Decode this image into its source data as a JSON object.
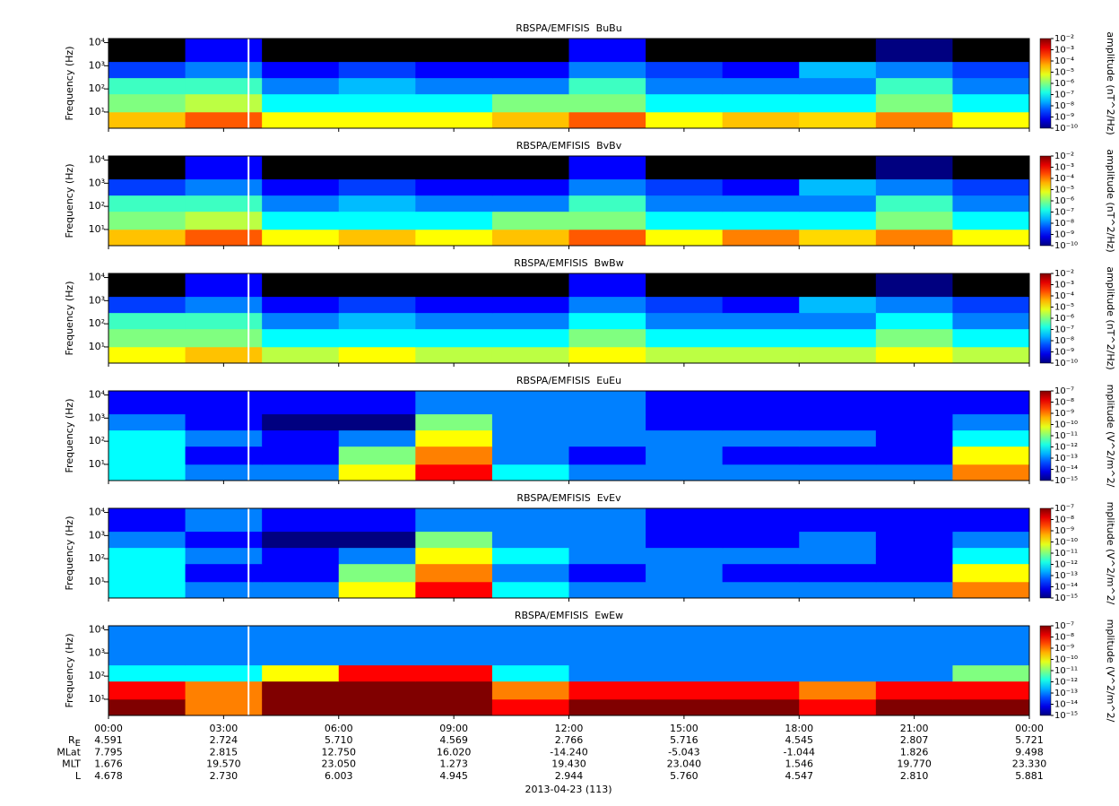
{
  "chart_data": [
    {
      "type": "spectrogram",
      "title": "RBSPA/EMFISIS  BuBu",
      "ylabel": "Frequency (Hz)",
      "log_y": true,
      "ylim": [
        2,
        15000
      ],
      "yticks": [
        {
          "value": 10,
          "label": "10¹"
        },
        {
          "value": 100,
          "label": "10²"
        },
        {
          "value": 1000,
          "label": "10³"
        },
        {
          "value": 10000,
          "label": "10⁴"
        }
      ],
      "xlim": [
        0,
        24
      ],
      "xbins": [
        0,
        2,
        4,
        6,
        8,
        10,
        12,
        14,
        16,
        18,
        20,
        22,
        24
      ],
      "ybins": [
        2,
        10,
        60,
        300,
        1500,
        15000
      ],
      "gap_x": 3.65,
      "z": [
        [
          3e-05,
          0.0002,
          1e-05,
          1e-05,
          1e-05,
          3e-05,
          0.0002,
          1e-05,
          3e-05,
          2e-05,
          0.0001,
          1e-05
        ],
        [
          1e-06,
          3e-06,
          1e-07,
          1e-07,
          1e-07,
          1e-06,
          1e-06,
          1e-07,
          1e-07,
          1e-07,
          1e-06,
          1e-07
        ],
        [
          3e-07,
          3e-07,
          1e-08,
          3e-08,
          1e-08,
          1e-08,
          3e-07,
          1e-08,
          1e-08,
          1e-08,
          3e-07,
          1e-08
        ],
        [
          3e-09,
          1e-08,
          1e-09,
          3e-09,
          1e-09,
          1e-09,
          1e-08,
          3e-09,
          1e-09,
          3e-08,
          1e-08,
          3e-09
        ],
        [
          1e-11,
          1e-09,
          1e-11,
          1e-11,
          1e-11,
          1e-11,
          1e-09,
          1e-11,
          1e-11,
          1e-11,
          1e-10,
          1e-11
        ]
      ],
      "colorbar": {
        "label": "amplitude (nT^2/Hz)",
        "log": true,
        "lim": [
          1e-10,
          0.01
        ],
        "ticks": [
          {
            "value": 0.01,
            "label": "10⁻²"
          },
          {
            "value": 0.001,
            "label": "10⁻³"
          },
          {
            "value": 0.0001,
            "label": "10⁻⁴"
          },
          {
            "value": 1e-05,
            "label": "10⁻⁵"
          },
          {
            "value": 1e-06,
            "label": "10⁻⁶"
          },
          {
            "value": 1e-07,
            "label": "10⁻⁷"
          },
          {
            "value": 1e-08,
            "label": "10⁻⁸"
          },
          {
            "value": 1e-09,
            "label": "10⁻⁹"
          },
          {
            "value": 1e-10,
            "label": "10⁻¹⁰"
          }
        ]
      }
    },
    {
      "type": "spectrogram",
      "title": "RBSPA/EMFISIS  BvBv",
      "ylabel": "Frequency (Hz)",
      "log_y": true,
      "ylim": [
        2,
        15000
      ],
      "yticks": [
        {
          "value": 10,
          "label": "10¹"
        },
        {
          "value": 100,
          "label": "10²"
        },
        {
          "value": 1000,
          "label": "10³"
        },
        {
          "value": 10000,
          "label": "10⁴"
        }
      ],
      "xlim": [
        0,
        24
      ],
      "xbins": [
        0,
        2,
        4,
        6,
        8,
        10,
        12,
        14,
        16,
        18,
        20,
        22,
        24
      ],
      "ybins": [
        2,
        10,
        60,
        300,
        1500,
        15000
      ],
      "gap_x": 3.65,
      "z": [
        [
          3e-05,
          0.0002,
          1e-05,
          3e-05,
          1e-05,
          3e-05,
          0.0002,
          1e-05,
          0.0001,
          2e-05,
          0.0001,
          1e-05
        ],
        [
          1e-06,
          3e-06,
          1e-07,
          1e-07,
          1e-07,
          1e-06,
          1e-06,
          1e-07,
          1e-07,
          1e-07,
          1e-06,
          1e-07
        ],
        [
          3e-07,
          3e-07,
          1e-08,
          3e-08,
          1e-08,
          1e-08,
          3e-07,
          1e-08,
          1e-08,
          1e-08,
          3e-07,
          1e-08
        ],
        [
          3e-09,
          1e-08,
          1e-09,
          3e-09,
          1e-09,
          1e-09,
          1e-08,
          3e-09,
          1e-09,
          3e-08,
          1e-08,
          3e-09
        ],
        [
          1e-11,
          1e-09,
          1e-11,
          1e-11,
          1e-11,
          1e-11,
          1e-09,
          1e-11,
          1e-11,
          1e-11,
          1e-10,
          1e-11
        ]
      ],
      "colorbar": {
        "label": "amplitude (nT^2/Hz)",
        "log": true,
        "lim": [
          1e-10,
          0.01
        ],
        "ticks": [
          {
            "value": 0.01,
            "label": "10⁻²"
          },
          {
            "value": 0.001,
            "label": "10⁻³"
          },
          {
            "value": 0.0001,
            "label": "10⁻⁴"
          },
          {
            "value": 1e-05,
            "label": "10⁻⁵"
          },
          {
            "value": 1e-06,
            "label": "10⁻⁶"
          },
          {
            "value": 1e-07,
            "label": "10⁻⁷"
          },
          {
            "value": 1e-08,
            "label": "10⁻⁸"
          },
          {
            "value": 1e-09,
            "label": "10⁻⁹"
          },
          {
            "value": 1e-10,
            "label": "10⁻¹⁰"
          }
        ]
      }
    },
    {
      "type": "spectrogram",
      "title": "RBSPA/EMFISIS  BwBw",
      "ylabel": "Frequency (Hz)",
      "log_y": true,
      "ylim": [
        2,
        15000
      ],
      "yticks": [
        {
          "value": 10,
          "label": "10¹"
        },
        {
          "value": 100,
          "label": "10²"
        },
        {
          "value": 1000,
          "label": "10³"
        },
        {
          "value": 10000,
          "label": "10⁴"
        }
      ],
      "xlim": [
        0,
        24
      ],
      "xbins": [
        0,
        2,
        4,
        6,
        8,
        10,
        12,
        14,
        16,
        18,
        20,
        22,
        24
      ],
      "ybins": [
        2,
        10,
        60,
        300,
        1500,
        15000
      ],
      "gap_x": 3.65,
      "z": [
        [
          1e-05,
          3e-05,
          3e-06,
          1e-05,
          3e-06,
          3e-06,
          1e-05,
          3e-06,
          3e-06,
          3e-06,
          1e-05,
          3e-06
        ],
        [
          1e-06,
          1e-06,
          1e-07,
          1e-07,
          1e-07,
          1e-07,
          1e-06,
          1e-07,
          1e-07,
          1e-07,
          1e-06,
          1e-07
        ],
        [
          3e-07,
          3e-07,
          1e-08,
          3e-08,
          1e-08,
          1e-08,
          1e-07,
          1e-08,
          1e-08,
          1e-08,
          1e-07,
          1e-08
        ],
        [
          3e-09,
          1e-08,
          1e-09,
          3e-09,
          1e-09,
          1e-09,
          1e-08,
          3e-09,
          1e-09,
          3e-08,
          1e-08,
          3e-09
        ],
        [
          1e-11,
          1e-09,
          1e-11,
          1e-11,
          1e-11,
          1e-11,
          1e-09,
          1e-11,
          1e-11,
          1e-11,
          1e-10,
          1e-11
        ]
      ],
      "colorbar": {
        "label": "amplitude (nT^2/Hz)",
        "log": true,
        "lim": [
          1e-10,
          0.01
        ],
        "ticks": [
          {
            "value": 0.01,
            "label": "10⁻²"
          },
          {
            "value": 0.001,
            "label": "10⁻³"
          },
          {
            "value": 0.0001,
            "label": "10⁻⁴"
          },
          {
            "value": 1e-05,
            "label": "10⁻⁵"
          },
          {
            "value": 1e-06,
            "label": "10⁻⁶"
          },
          {
            "value": 1e-07,
            "label": "10⁻⁷"
          },
          {
            "value": 1e-08,
            "label": "10⁻⁸"
          },
          {
            "value": 1e-09,
            "label": "10⁻⁹"
          },
          {
            "value": 1e-10,
            "label": "10⁻¹⁰"
          }
        ]
      }
    },
    {
      "type": "spectrogram",
      "title": "RBSPA/EMFISIS  EuEu",
      "ylabel": "Frequency (Hz)",
      "log_y": true,
      "ylim": [
        2,
        15000
      ],
      "yticks": [
        {
          "value": 10,
          "label": "10¹"
        },
        {
          "value": 100,
          "label": "10²"
        },
        {
          "value": 1000,
          "label": "10³"
        },
        {
          "value": 10000,
          "label": "10⁴"
        }
      ],
      "xlim": [
        0,
        24
      ],
      "xbins": [
        0,
        2,
        4,
        6,
        8,
        10,
        12,
        14,
        16,
        18,
        20,
        22,
        24
      ],
      "ybins": [
        2,
        10,
        60,
        300,
        1500,
        15000
      ],
      "gap_x": 3.65,
      "z": [
        [
          1e-12,
          1e-13,
          1e-13,
          1e-10,
          1e-08,
          1e-12,
          1e-13,
          1e-13,
          1e-13,
          1e-13,
          1e-13,
          1e-09
        ],
        [
          1e-12,
          1e-14,
          1e-14,
          1e-11,
          1e-09,
          1e-13,
          1e-14,
          1e-13,
          1e-14,
          1e-14,
          1e-14,
          1e-10
        ],
        [
          1e-12,
          1e-13,
          1e-14,
          1e-13,
          1e-10,
          1e-13,
          1e-13,
          1e-13,
          1e-13,
          1e-13,
          1e-14,
          1e-12
        ],
        [
          1e-13,
          1e-14,
          1e-15,
          1e-15,
          1e-11,
          1e-13,
          1e-13,
          1e-14,
          1e-14,
          1e-14,
          1e-14,
          1e-13
        ],
        [
          1e-14,
          1e-14,
          1e-14,
          1e-14,
          1e-13,
          1e-13,
          1e-13,
          1e-14,
          1e-14,
          1e-14,
          1e-14,
          1e-14
        ]
      ],
      "colorbar": {
        "label": "mplitude (V^2/m^2/",
        "log": true,
        "lim": [
          1e-15,
          1e-07
        ],
        "ticks": [
          {
            "value": 1e-07,
            "label": "10⁻⁷"
          },
          {
            "value": 1e-08,
            "label": "10⁻⁸"
          },
          {
            "value": 1e-09,
            "label": "10⁻⁹"
          },
          {
            "value": 1e-10,
            "label": "10⁻¹⁰"
          },
          {
            "value": 1e-11,
            "label": "10⁻¹¹"
          },
          {
            "value": 1e-12,
            "label": "10⁻¹²"
          },
          {
            "value": 1e-13,
            "label": "10⁻¹³"
          },
          {
            "value": 1e-14,
            "label": "10⁻¹⁴"
          },
          {
            "value": 1e-15,
            "label": "10⁻¹⁵"
          }
        ]
      }
    },
    {
      "type": "spectrogram",
      "title": "RBSPA/EMFISIS  EvEv",
      "ylabel": "Frequency (Hz)",
      "log_y": true,
      "ylim": [
        2,
        15000
      ],
      "yticks": [
        {
          "value": 10,
          "label": "10¹"
        },
        {
          "value": 100,
          "label": "10²"
        },
        {
          "value": 1000,
          "label": "10³"
        },
        {
          "value": 10000,
          "label": "10⁴"
        }
      ],
      "xlim": [
        0,
        24
      ],
      "xbins": [
        0,
        2,
        4,
        6,
        8,
        10,
        12,
        14,
        16,
        18,
        20,
        22,
        24
      ],
      "ybins": [
        2,
        10,
        60,
        300,
        1500,
        15000
      ],
      "gap_x": 3.65,
      "z": [
        [
          1e-12,
          1e-13,
          1e-13,
          1e-10,
          1e-08,
          1e-12,
          1e-13,
          1e-13,
          1e-13,
          1e-13,
          1e-13,
          1e-09
        ],
        [
          1e-12,
          1e-14,
          1e-14,
          1e-11,
          1e-09,
          1e-13,
          1e-14,
          1e-13,
          1e-14,
          1e-14,
          1e-14,
          1e-10
        ],
        [
          1e-12,
          1e-13,
          1e-14,
          1e-13,
          1e-10,
          1e-12,
          1e-13,
          1e-13,
          1e-13,
          1e-13,
          1e-14,
          1e-12
        ],
        [
          1e-13,
          1e-14,
          1e-15,
          1e-15,
          1e-11,
          1e-13,
          1e-13,
          1e-14,
          1e-14,
          1e-13,
          1e-14,
          1e-13
        ],
        [
          1e-14,
          1e-13,
          1e-14,
          1e-14,
          1e-13,
          1e-13,
          1e-13,
          1e-14,
          1e-14,
          1e-14,
          1e-14,
          1e-14
        ]
      ],
      "colorbar": {
        "label": "mplitude (V^2/m^2/",
        "log": true,
        "lim": [
          1e-15,
          1e-07
        ],
        "ticks": [
          {
            "value": 1e-07,
            "label": "10⁻⁷"
          },
          {
            "value": 1e-08,
            "label": "10⁻⁸"
          },
          {
            "value": 1e-09,
            "label": "10⁻⁹"
          },
          {
            "value": 1e-10,
            "label": "10⁻¹⁰"
          },
          {
            "value": 1e-11,
            "label": "10⁻¹¹"
          },
          {
            "value": 1e-12,
            "label": "10⁻¹²"
          },
          {
            "value": 1e-13,
            "label": "10⁻¹³"
          },
          {
            "value": 1e-14,
            "label": "10⁻¹⁴"
          },
          {
            "value": 1e-15,
            "label": "10⁻¹⁵"
          }
        ]
      }
    },
    {
      "type": "spectrogram",
      "title": "RBSPA/EMFISIS  EwEw",
      "ylabel": "Frequency (Hz)",
      "log_y": true,
      "ylim": [
        2,
        15000
      ],
      "yticks": [
        {
          "value": 10,
          "label": "10¹"
        },
        {
          "value": 100,
          "label": "10²"
        },
        {
          "value": 1000,
          "label": "10³"
        },
        {
          "value": 10000,
          "label": "10⁴"
        }
      ],
      "xlim": [
        0,
        24
      ],
      "xbins": [
        0,
        2,
        4,
        6,
        8,
        10,
        12,
        14,
        16,
        18,
        20,
        22,
        24
      ],
      "ybins": [
        2,
        10,
        60,
        300,
        1500,
        15000
      ],
      "gap_x": 3.65,
      "z": [
        [
          1e-07,
          1e-09,
          1e-07,
          1e-07,
          1e-07,
          1e-08,
          1e-07,
          1e-07,
          1e-07,
          1e-08,
          1e-07,
          1e-07
        ],
        [
          1e-08,
          1e-09,
          1e-07,
          1e-07,
          1e-07,
          1e-09,
          1e-08,
          1e-08,
          1e-08,
          1e-09,
          1e-08,
          1e-08
        ],
        [
          1e-12,
          1e-12,
          1e-10,
          1e-08,
          1e-08,
          1e-12,
          1e-13,
          1e-13,
          1e-13,
          1e-13,
          1e-13,
          1e-11
        ],
        [
          1e-13,
          1e-13,
          1e-13,
          1e-13,
          1e-13,
          1e-13,
          1e-13,
          1e-13,
          1e-13,
          1e-13,
          1e-13,
          1e-13
        ],
        [
          1e-13,
          1e-13,
          1e-13,
          1e-13,
          1e-13,
          1e-13,
          1e-13,
          1e-13,
          1e-13,
          1e-13,
          1e-13,
          1e-13
        ]
      ],
      "colorbar": {
        "label": "mplitude (V^2/m^2/",
        "log": true,
        "lim": [
          1e-15,
          1e-07
        ],
        "ticks": [
          {
            "value": 1e-07,
            "label": "10⁻⁷"
          },
          {
            "value": 1e-08,
            "label": "10⁻⁸"
          },
          {
            "value": 1e-09,
            "label": "10⁻⁹"
          },
          {
            "value": 1e-10,
            "label": "10⁻¹⁰"
          },
          {
            "value": 1e-11,
            "label": "10⁻¹¹"
          },
          {
            "value": 1e-12,
            "label": "10⁻¹²"
          },
          {
            "value": 1e-13,
            "label": "10⁻¹³"
          },
          {
            "value": 1e-14,
            "label": "10⁻¹⁴"
          },
          {
            "value": 1e-15,
            "label": "10⁻¹⁵"
          }
        ]
      },
      "xticks": [
        {
          "value": 0,
          "label": "00:00"
        },
        {
          "value": 3,
          "label": "03:00"
        },
        {
          "value": 6,
          "label": "06:00"
        },
        {
          "value": 9,
          "label": "09:00"
        },
        {
          "value": 12,
          "label": "12:00"
        },
        {
          "value": 15,
          "label": "15:00"
        },
        {
          "value": 18,
          "label": "18:00"
        },
        {
          "value": 21,
          "label": "21:00"
        },
        {
          "value": 24,
          "label": "00:00"
        }
      ]
    }
  ],
  "ephemeris": {
    "rows": [
      {
        "label": "R",
        "subscript": "E",
        "values": [
          "4.591",
          "2.724",
          "5.710",
          "4.569",
          "2.766",
          "5.716",
          "4.545",
          "2.807",
          "5.721"
        ]
      },
      {
        "label": "MLat",
        "values": [
          "7.795",
          "2.815",
          "12.750",
          "16.020",
          "-14.240",
          "-5.043",
          "-1.044",
          "1.826",
          "9.498"
        ]
      },
      {
        "label": "MLT",
        "values": [
          "1.676",
          "19.570",
          "23.050",
          "1.273",
          "19.430",
          "23.040",
          "1.546",
          "19.770",
          "23.330"
        ]
      },
      {
        "label": "L",
        "values": [
          "4.678",
          "2.730",
          "6.003",
          "4.945",
          "2.944",
          "5.760",
          "4.547",
          "2.810",
          "5.881"
        ]
      }
    ],
    "date": "2013-04-23 (113)"
  }
}
